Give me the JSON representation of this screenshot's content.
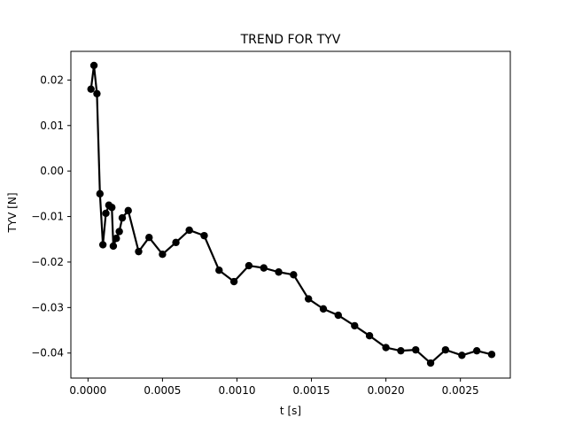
{
  "chart_data": {
    "type": "line",
    "title": "TREND FOR TYV",
    "xlabel": "t [s]",
    "ylabel": "TYV [N]",
    "xlim": [
      -0.000115,
      0.002835
    ],
    "ylim": [
      -0.0455,
      0.0263
    ],
    "xticks": [
      0.0,
      0.0005,
      0.001,
      0.0015,
      0.002,
      0.0025
    ],
    "xtick_labels": [
      "0.0000",
      "0.0005",
      "0.0010",
      "0.0015",
      "0.0020",
      "0.0025"
    ],
    "yticks": [
      0.02,
      0.01,
      0.0,
      -0.01,
      -0.02,
      -0.03,
      -0.04
    ],
    "ytick_labels": [
      "0.02",
      "0.01",
      "0.00",
      "−0.01",
      "−0.02",
      "−0.03",
      "−0.04"
    ],
    "grid": false,
    "legend": "none",
    "series": [
      {
        "color": "#000000",
        "marker": "circle",
        "x": [
          2e-05,
          4e-05,
          6e-05,
          8e-05,
          0.0001,
          0.00012,
          0.00014,
          0.00016,
          0.00017,
          0.00019,
          0.00021,
          0.00023,
          0.00027,
          0.00034,
          0.00041,
          0.0005,
          0.00059,
          0.00068,
          0.00078,
          0.00088,
          0.00098,
          0.00108,
          0.00118,
          0.00128,
          0.00138,
          0.00148,
          0.00158,
          0.00168,
          0.00179,
          0.00189,
          0.002,
          0.0021,
          0.0022,
          0.0023,
          0.0024,
          0.00251,
          0.00261,
          0.00271
        ],
        "y": [
          0.018,
          0.0232,
          0.017,
          -0.005,
          -0.0162,
          -0.0093,
          -0.0075,
          -0.008,
          -0.0165,
          -0.0148,
          -0.0133,
          -0.0103,
          -0.0087,
          -0.0177,
          -0.0146,
          -0.0183,
          -0.0157,
          -0.013,
          -0.0142,
          -0.0218,
          -0.0243,
          -0.0208,
          -0.0213,
          -0.0222,
          -0.0228,
          -0.0281,
          -0.0303,
          -0.0317,
          -0.034,
          -0.0362,
          -0.0388,
          -0.0395,
          -0.0393,
          -0.0422,
          -0.0393,
          -0.0405,
          -0.0395,
          -0.0403
        ]
      }
    ]
  }
}
